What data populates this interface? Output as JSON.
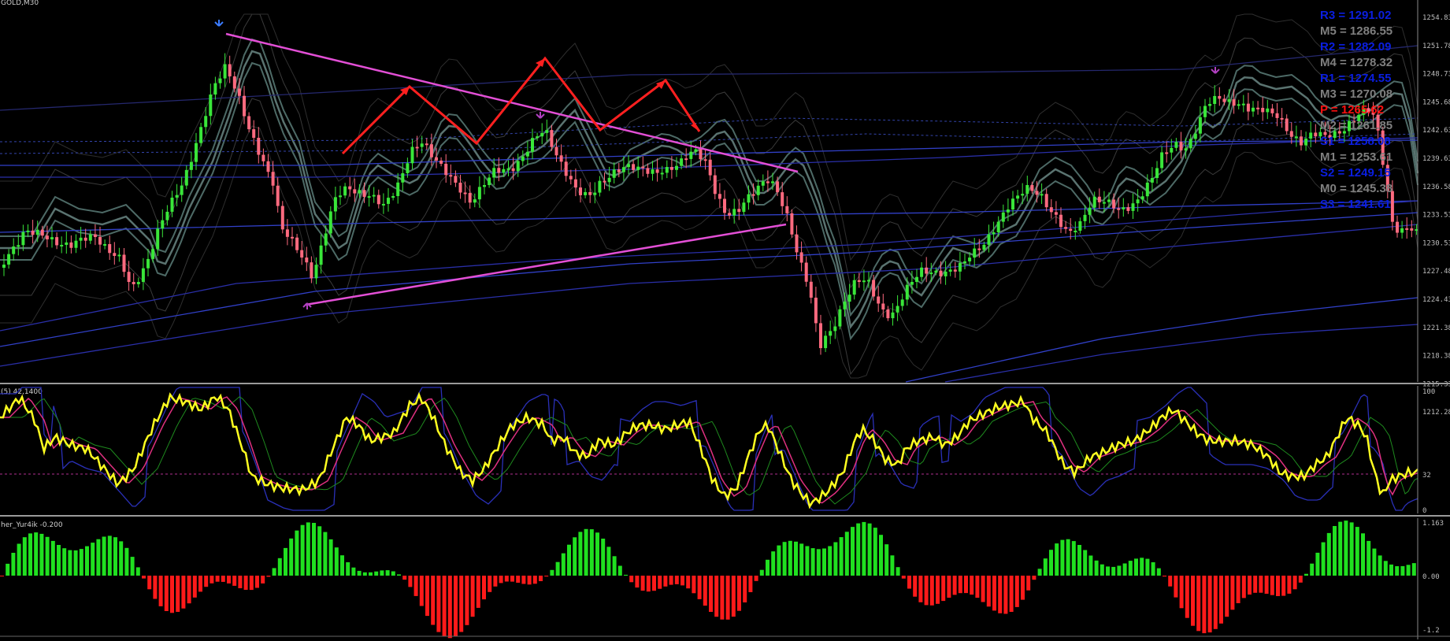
{
  "main_panel": {
    "symbol_label": "GOLD,M30",
    "price_scale": [
      "1254.83",
      "1251.78",
      "1248.73",
      "1245.68",
      "1242.63",
      "1239.63",
      "1236.58",
      "1233.53",
      "1230.53",
      "1227.48",
      "1224.43",
      "1221.38",
      "1218.38",
      "1215.33",
      "1212.28"
    ],
    "pivots": [
      {
        "label": "R3 = 1291.02",
        "color": "#0a1ee0"
      },
      {
        "label": "M5 = 1286.55",
        "color": "#7f7f7f"
      },
      {
        "label": "R2 = 1282.09",
        "color": "#0a1ee0"
      },
      {
        "label": "M4 = 1278.32",
        "color": "#7f7f7f"
      },
      {
        "label": "R1 = 1274.55",
        "color": "#0a1ee0"
      },
      {
        "label": "M3 = 1270.08",
        "color": "#7f7f7f"
      },
      {
        "label": "P = 1265.62",
        "color": "#ff1010"
      },
      {
        "label": "M2 = 1261.85",
        "color": "#7f7f7f"
      },
      {
        "label": "S1 = 1258.08",
        "color": "#0a1ee0"
      },
      {
        "label": "M1 = 1253.61",
        "color": "#7f7f7f"
      },
      {
        "label": "S2 = 1249.15",
        "color": "#0a1ee0"
      },
      {
        "label": "M0 = 1245.38",
        "color": "#7f7f7f"
      },
      {
        "label": "S3 = 1241.61",
        "color": "#0a1ee0"
      }
    ]
  },
  "oscillator_panel": {
    "title": "(5) 42,1400",
    "scale": [
      "100",
      "32",
      "0"
    ]
  },
  "histogram_panel": {
    "title": "her_Yur4ik -0.200",
    "scale": [
      "1.163",
      "0.00",
      "-1.2"
    ]
  },
  "colors": {
    "bull_candle": "#39e639",
    "bear_candle": "#ff6a7f",
    "trendline": "#e34fd6",
    "arrow": "#ff2020",
    "stoch_main": "#ffff20",
    "stoch_signal": "#e03080",
    "hist_pos": "#20e020",
    "hist_neg": "#ff1a1a"
  }
}
